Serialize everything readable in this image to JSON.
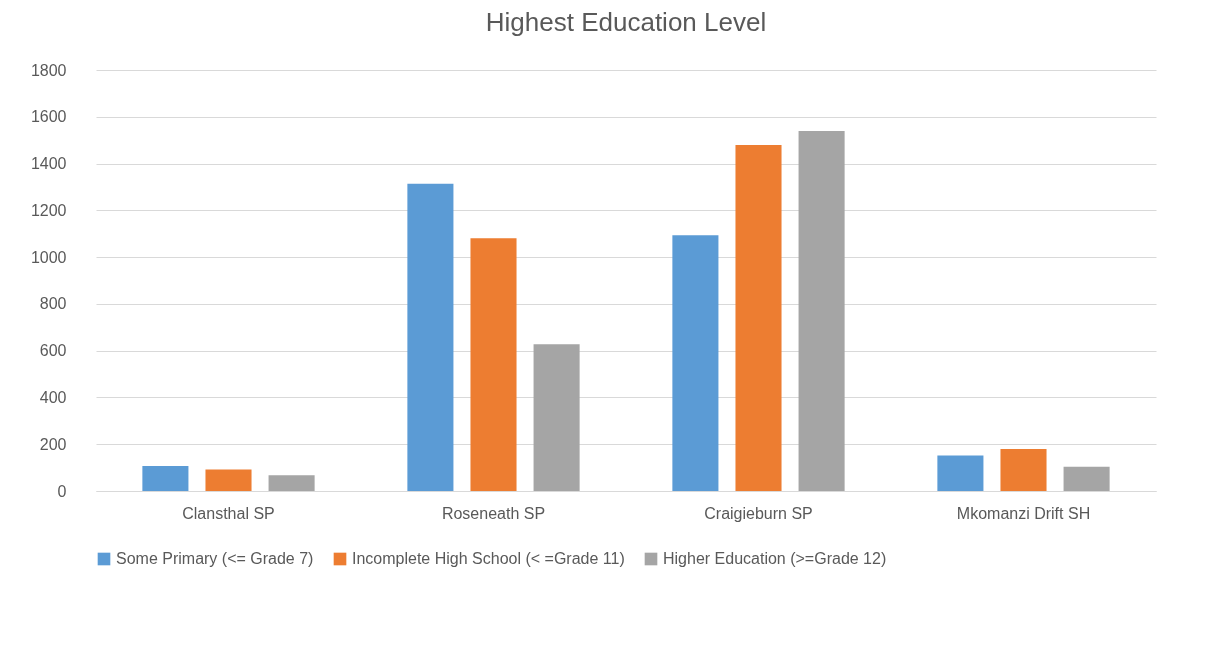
{
  "chart_data": {
    "type": "bar",
    "title": "Highest Education Level",
    "categories": [
      "Clansthal SP",
      "Roseneath SP",
      "Craigieburn SP",
      "Mkomanzi Drift SH"
    ],
    "series": [
      {
        "name": "Some Primary (<= Grade 7)",
        "color": "#5b9bd5",
        "values": [
          107,
          1314,
          1093,
          152
        ]
      },
      {
        "name": "Incomplete High School (< =Grade 11)",
        "color": "#ed7d31",
        "values": [
          92,
          1081,
          1479,
          180
        ]
      },
      {
        "name": "Higher Education (>=Grade 12)",
        "color": "#a5a5a5",
        "values": [
          67,
          627,
          1539,
          104
        ]
      }
    ],
    "ylim": [
      0,
      1800
    ],
    "yticks": [
      0,
      200,
      400,
      600,
      800,
      1000,
      1200,
      1400,
      1600,
      1800
    ],
    "grid": "y",
    "legend": "bottom"
  }
}
